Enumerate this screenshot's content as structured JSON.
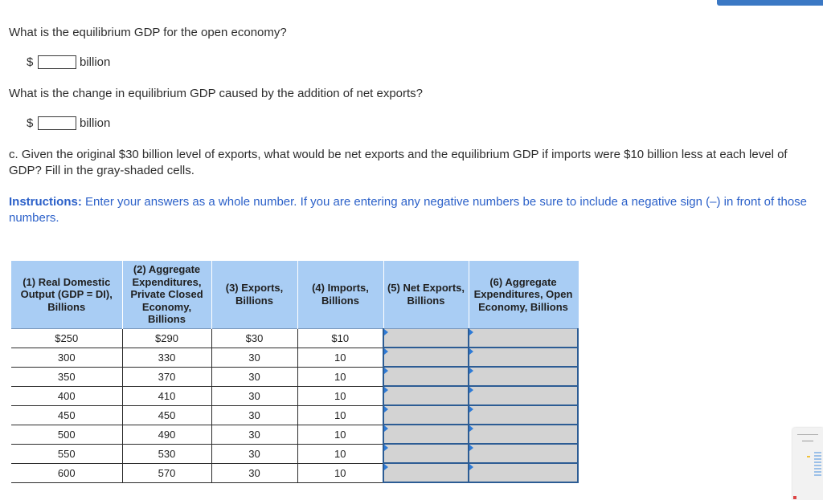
{
  "question_equilibrium": "What is the equilibrium GDP for the open economy?",
  "answer1": {
    "currency": "$",
    "value": "",
    "unit": "billion"
  },
  "question_change": "What is the change in equilibrium GDP caused by the addition of net exports?",
  "answer2": {
    "currency": "$",
    "value": "",
    "unit": "billion"
  },
  "part_c": "c. Given the original $30 billion level of exports, what would be net exports and the equilibrium GDP if imports were $10 billion less at each level of GDP? Fill in the gray-shaded cells.",
  "instructions": {
    "label": "Instructions:",
    "text": " Enter your answers as a whole number. If you are entering any negative numbers be sure to include a negative sign (–) in front of those numbers."
  },
  "table": {
    "headers": [
      "(1) Real Domestic Output (GDP = DI), Billions",
      "(2) Aggregate Expenditures, Private Closed Economy, Billions",
      "(3) Exports, Billions",
      "(4) Imports, Billions",
      "(5) Net Exports, Billions",
      "(6) Aggregate Expenditures, Open Economy, Billions"
    ],
    "rows": [
      [
        "$250",
        "$290",
        "$30",
        "$10"
      ],
      [
        "300",
        "330",
        "30",
        "10"
      ],
      [
        "350",
        "370",
        "30",
        "10"
      ],
      [
        "400",
        "410",
        "30",
        "10"
      ],
      [
        "450",
        "450",
        "30",
        "10"
      ],
      [
        "500",
        "490",
        "30",
        "10"
      ],
      [
        "550",
        "530",
        "30",
        "10"
      ],
      [
        "600",
        "570",
        "30",
        "10"
      ]
    ]
  },
  "colors": {
    "header_bg": "#a9cdf4",
    "instruction_text": "#2c61c9",
    "gray_cell": "#d3d3d3",
    "top_bar": "#3b78c4"
  }
}
